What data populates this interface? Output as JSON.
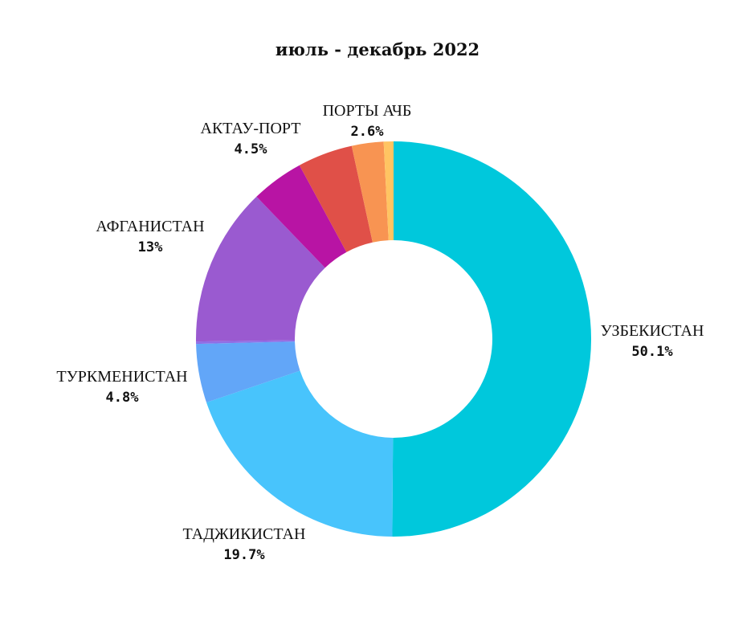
{
  "chart_data": {
    "type": "pie",
    "title": "июль - декабрь 2022",
    "slices": [
      {
        "label": "УЗБЕКИСТАН",
        "value": 50.1,
        "value_label": "50.1%",
        "color": "#00c8dc"
      },
      {
        "label": "ТАДЖИКИСТАН",
        "value": 19.7,
        "value_label": "19.7%",
        "color": "#48c4fc"
      },
      {
        "label": "ТУРКМЕНИСТАН",
        "value": 4.8,
        "value_label": "4.8%",
        "color": "#62a6f8"
      },
      {
        "label": "",
        "value": 0.2,
        "value_label": "",
        "color": "#8f6ee6"
      },
      {
        "label": "АФГАНИСТАН",
        "value": 13.0,
        "value_label": "13%",
        "color": "#9a5ad0"
      },
      {
        "label": "",
        "value": 4.3,
        "value_label": "",
        "color": "#b814a4"
      },
      {
        "label": "АКТАУ-ПОРТ",
        "value": 4.5,
        "value_label": "4.5%",
        "color": "#e05048"
      },
      {
        "label": "ПОРТЫ АЧБ",
        "value": 2.6,
        "value_label": "2.6%",
        "color": "#f89452"
      },
      {
        "label": "",
        "value": 0.8,
        "value_label": "",
        "color": "#ffc462"
      }
    ],
    "hole_ratio": 0.5
  }
}
